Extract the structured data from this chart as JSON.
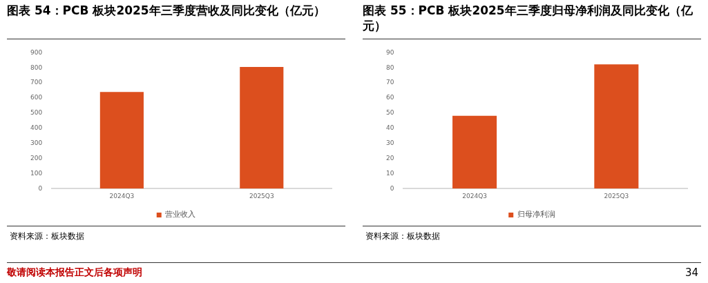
{
  "chart_data": [
    {
      "type": "bar",
      "title": "图表 54：PCB 板块2025年三季度营收及同比变化（亿元）",
      "categories": [
        "2024Q3",
        "2025Q3"
      ],
      "series": [
        {
          "name": "营业收入",
          "color": "#dc4f1e",
          "values": [
            640,
            806
          ]
        }
      ],
      "ylim": [
        0,
        900
      ],
      "yticks": [
        0,
        100,
        200,
        300,
        400,
        500,
        600,
        700,
        800,
        900
      ],
      "grid": false,
      "legend": "bottom",
      "annotations": [
        "资料来源：板块数据",
        "敬请阅读本报告正文后各项声明"
      ]
    },
    {
      "type": "bar",
      "title": "图表 55：PCB 板块2025年三季度归母净利润及同比变化（亿元）",
      "categories": [
        "2024Q3",
        "2025Q3"
      ],
      "series": [
        {
          "name": "归母净利润",
          "color": "#dc4f1e",
          "values": [
            48.2,
            82.3
          ]
        }
      ],
      "ylim": [
        0,
        90
      ],
      "yticks": [
        0,
        10,
        20,
        30,
        40,
        50,
        60,
        70,
        80,
        90
      ],
      "grid": false,
      "legend": "bottom",
      "annotations": [
        "资料来源：板块数据",
        "34"
      ]
    }
  ]
}
